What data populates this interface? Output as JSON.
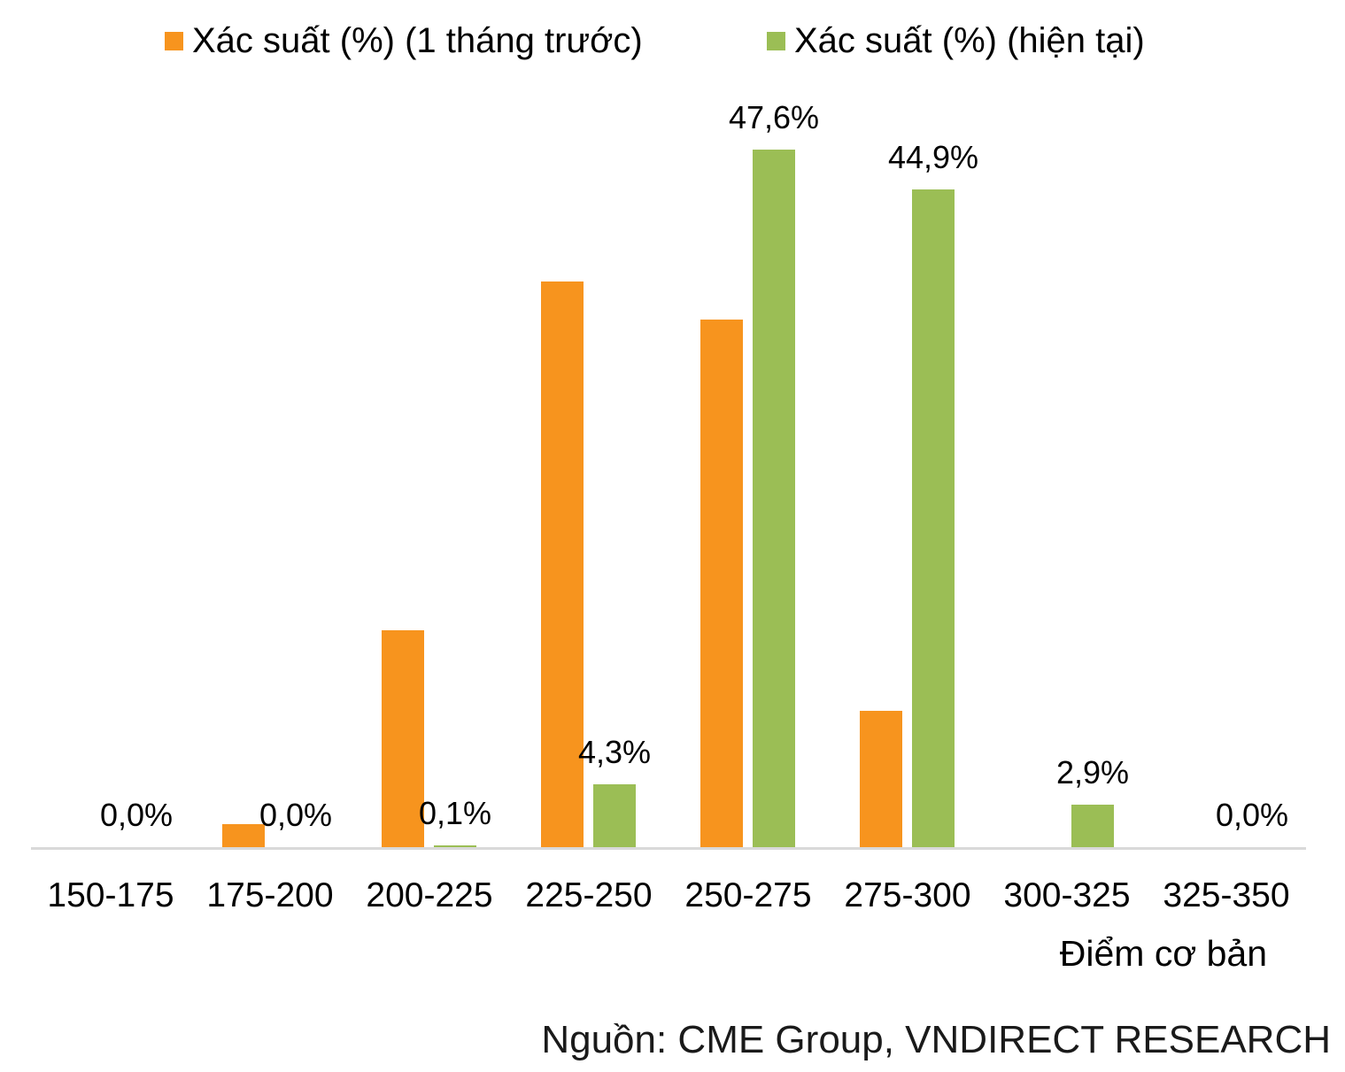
{
  "legend": {
    "items": [
      {
        "label": "Xác suất (%) (1 tháng trước)",
        "color": "#F7941E"
      },
      {
        "label": "Xác suất (%) (hiện tại)",
        "color": "#9BBE55"
      }
    ],
    "position": "top"
  },
  "chart_data": {
    "type": "bar",
    "categories": [
      "150-175",
      "175-200",
      "200-225",
      "225-250",
      "250-275",
      "275-300",
      "300-325",
      "325-350"
    ],
    "series": [
      {
        "name": "Xác suất (%) (1 tháng trước)",
        "color": "#F7941E",
        "values": [
          0.0,
          1.6,
          14.8,
          38.6,
          36.0,
          9.3,
          0.0,
          0.0
        ],
        "labels_shown": false
      },
      {
        "name": "Xác suất (%) (hiện tại)",
        "color": "#9BBE55",
        "values": [
          0.0,
          0.0,
          0.1,
          4.3,
          47.6,
          44.9,
          2.9,
          0.0
        ],
        "labels": [
          "0,0%",
          "0,0%",
          "0,1%",
          "4,3%",
          "47,6%",
          "44,9%",
          "2,9%",
          "0,0%"
        ],
        "labels_shown": true
      }
    ],
    "title": "",
    "xlabel": "Điểm cơ bản",
    "ylabel": "",
    "ylim": [
      0,
      50
    ],
    "grid": false,
    "y_axis_shown": false,
    "legend_position": "top",
    "decimal_separator": ","
  },
  "source_note": "Nguồn: CME Group, VNDIRECT RESEARCH",
  "colors": {
    "series_1": "#F7941E",
    "series_2": "#9BBE55",
    "axis_line": "#d9d9d9",
    "text": "#000000",
    "background": "#ffffff"
  }
}
